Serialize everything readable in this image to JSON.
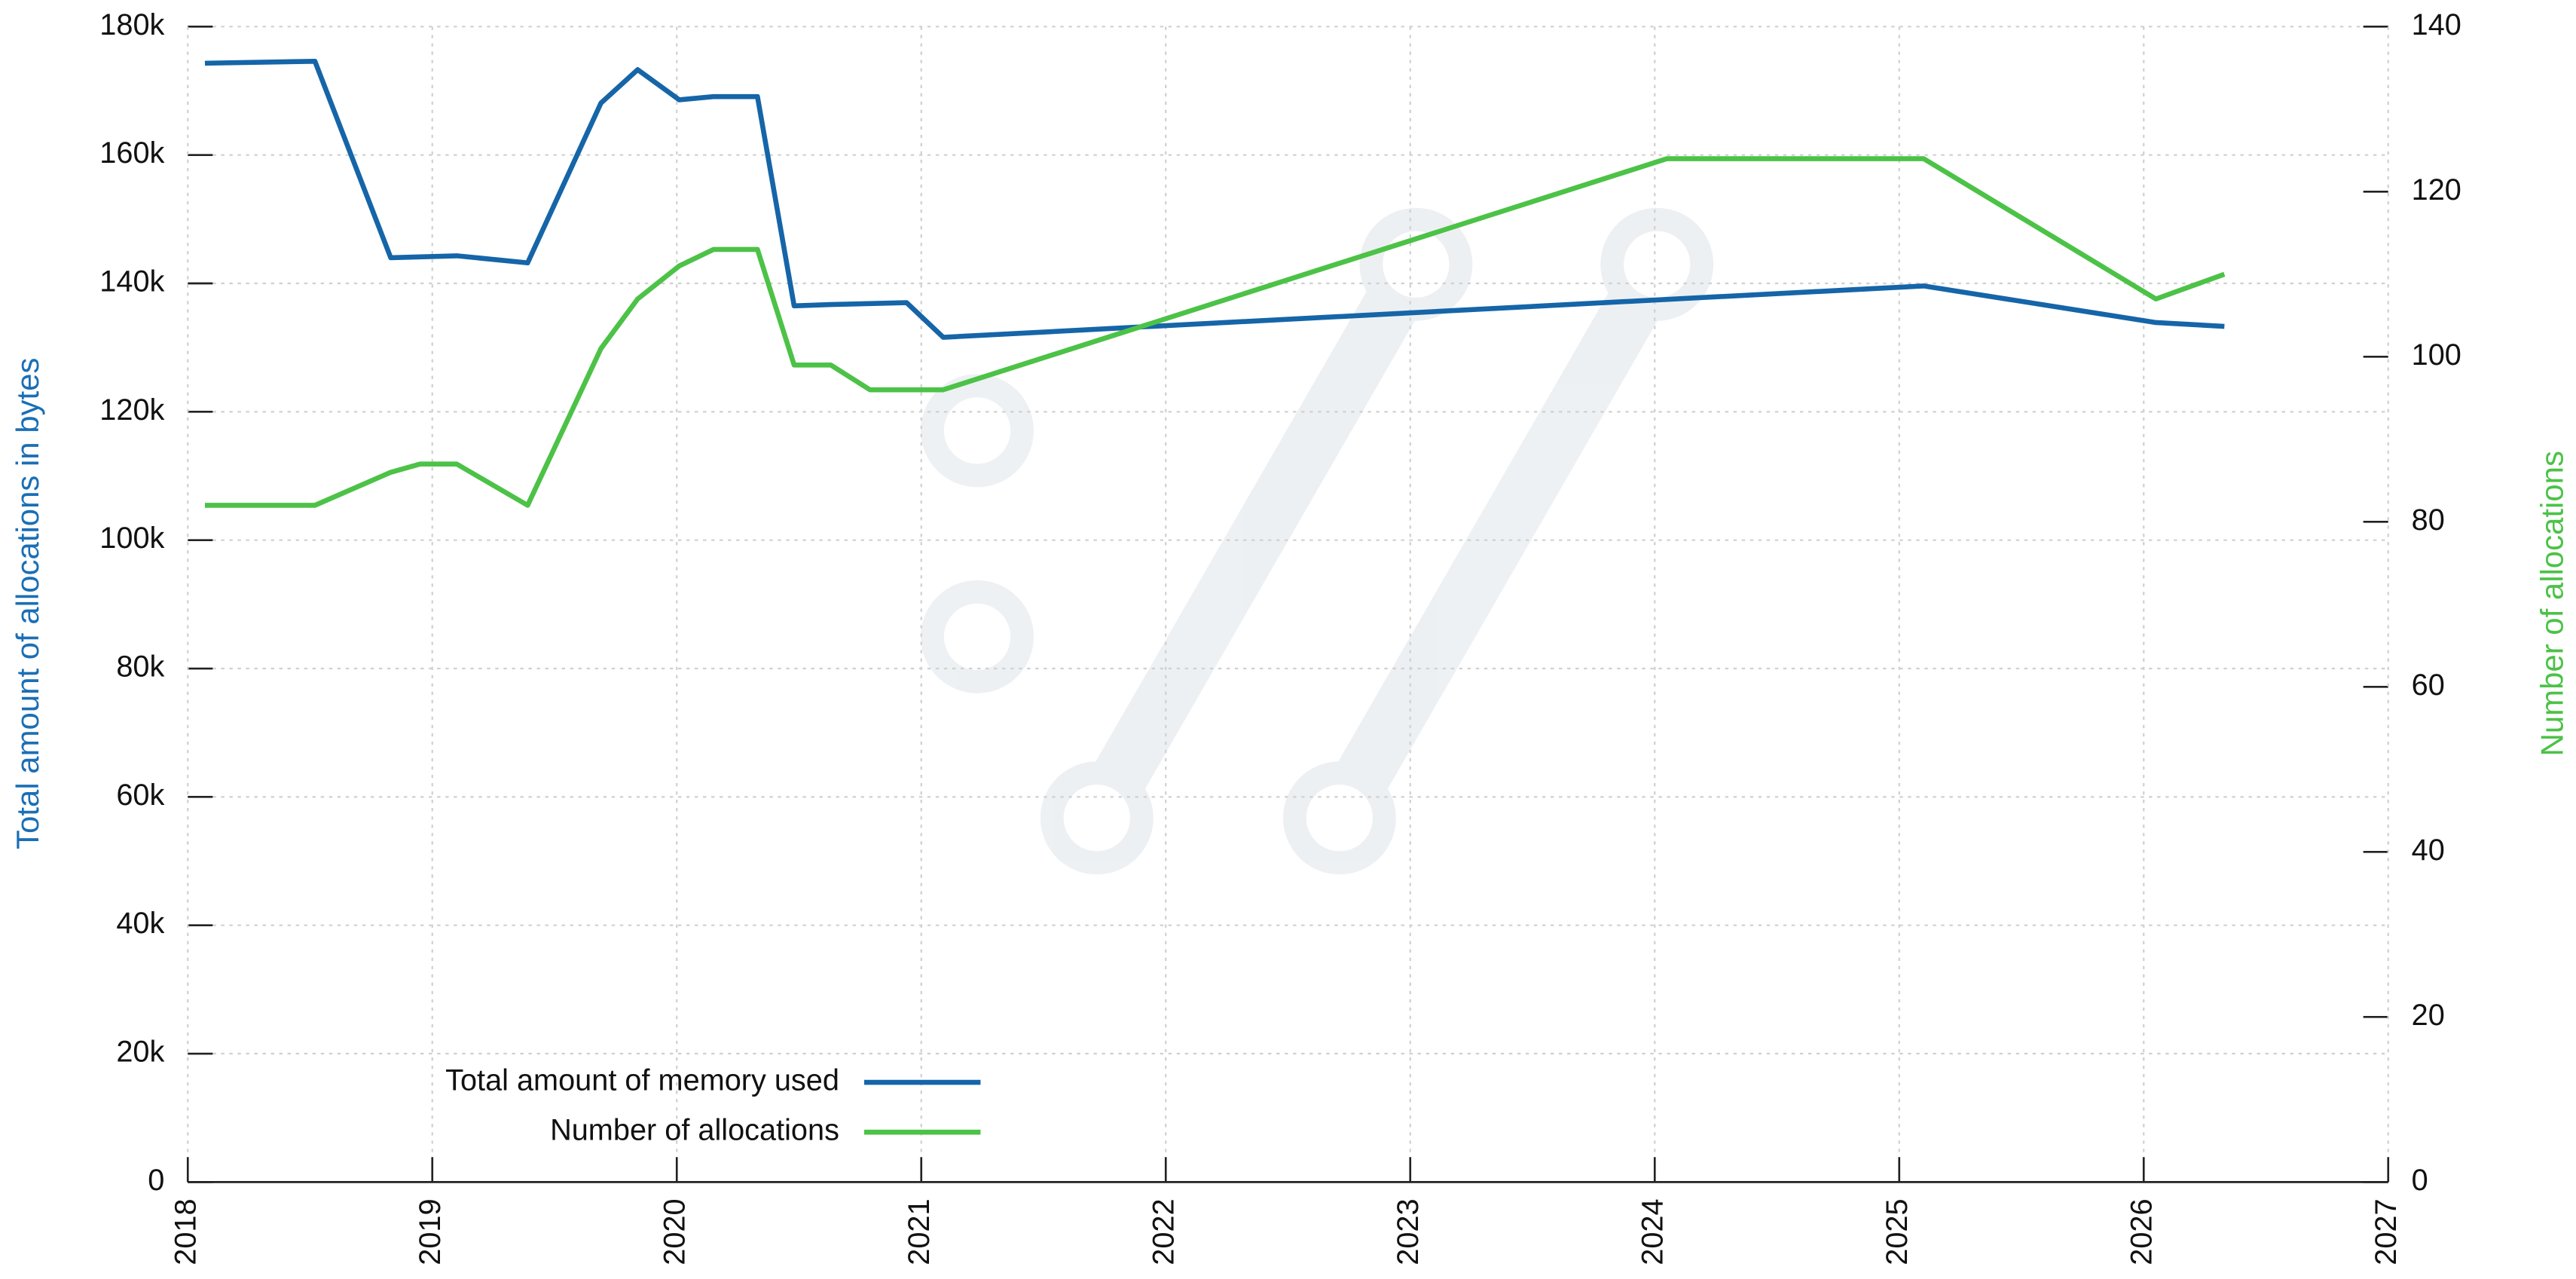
{
  "chart_data": {
    "type": "line",
    "y_label": "Total amount of allocations in bytes",
    "y2_label": "Number of allocations",
    "xlim": [
      2018,
      2027
    ],
    "xticks": [
      2018,
      2019,
      2020,
      2021,
      2022,
      2023,
      2024,
      2025,
      2026,
      2027
    ],
    "ylim": [
      0,
      180000
    ],
    "yticks": [
      0,
      {
        "value": 20000,
        "label": "20k"
      },
      {
        "value": 40000,
        "label": "40k"
      },
      {
        "value": 60000,
        "label": "60k"
      },
      {
        "value": 80000,
        "label": "80k"
      },
      {
        "value": 100000,
        "label": "100k"
      },
      {
        "value": 120000,
        "label": "120k"
      },
      {
        "value": 140000,
        "label": "140k"
      },
      {
        "value": 160000,
        "label": "160k"
      },
      {
        "value": 180000,
        "label": "180k"
      }
    ],
    "y2lim": [
      0,
      140
    ],
    "y2ticks": [
      0,
      20,
      40,
      60,
      80,
      100,
      120,
      140
    ],
    "grid": true,
    "legend": "lower left",
    "series": [
      {
        "name": "Total amount of memory used",
        "color": "#1565a8",
        "axis": "y",
        "x": [
          2018.07,
          2018.52,
          2018.83,
          2019.1,
          2019.39,
          2019.69,
          2019.84,
          2020.01,
          2020.15,
          2020.33,
          2020.48,
          2020.63,
          2020.94,
          2021.09,
          2025.1,
          2026.05,
          2026.33
        ],
        "values": [
          174300,
          174600,
          144000,
          144300,
          143200,
          168100,
          173300,
          168600,
          169100,
          169100,
          136500,
          136700,
          137000,
          131600,
          139600,
          133900,
          133300
        ]
      },
      {
        "name": "Number of allocations",
        "color": "#4cc247",
        "axis": "y2",
        "x": [
          2018.07,
          2018.52,
          2018.83,
          2018.95,
          2019.1,
          2019.39,
          2019.69,
          2019.84,
          2020.01,
          2020.15,
          2020.33,
          2020.48,
          2020.63,
          2020.79,
          2021.09,
          2024.05,
          2025.1,
          2026.05,
          2026.33
        ],
        "values": [
          82,
          82,
          86,
          87,
          87,
          82,
          101,
          107,
          111,
          113,
          113,
          99,
          99,
          96,
          96,
          124,
          124,
          107,
          110
        ]
      }
    ]
  }
}
